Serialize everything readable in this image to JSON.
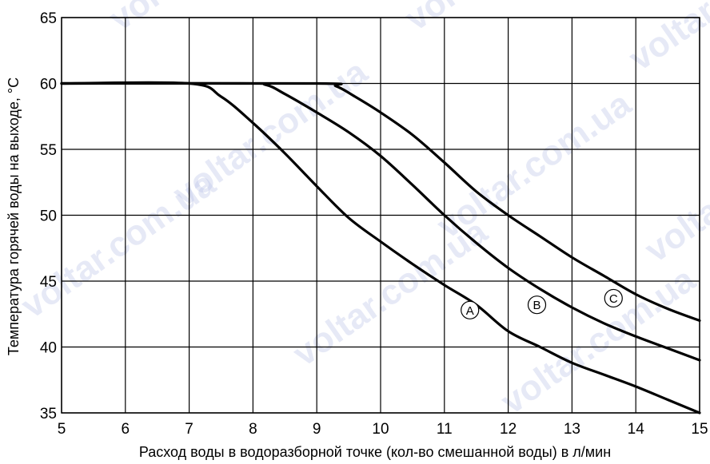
{
  "chart_data": {
    "type": "line",
    "xlabel": "Расход воды в водоразборной точке (кол-во смешанной воды) в л/мин",
    "ylabel": "Температура горячей воды на выходе, °C",
    "xlim": [
      5,
      15
    ],
    "ylim": [
      35,
      65
    ],
    "xticks": [
      5,
      6,
      7,
      8,
      9,
      10,
      11,
      12,
      13,
      14,
      15
    ],
    "yticks": [
      35,
      40,
      45,
      50,
      55,
      60,
      65
    ],
    "grid": true,
    "legend": "none",
    "series": [
      {
        "name": "A",
        "color": "#000000",
        "points": [
          [
            5,
            60
          ],
          [
            7,
            60
          ],
          [
            7.5,
            59
          ],
          [
            8,
            57
          ],
          [
            8.5,
            54.7
          ],
          [
            9,
            52.2
          ],
          [
            9.5,
            49.8
          ],
          [
            10,
            48
          ],
          [
            10.5,
            46.3
          ],
          [
            11,
            44.7
          ],
          [
            11.5,
            43.2
          ],
          [
            12,
            41.2
          ],
          [
            12.5,
            40
          ],
          [
            13,
            38.8
          ],
          [
            13.5,
            37.9
          ],
          [
            14,
            37
          ],
          [
            14.5,
            36
          ],
          [
            15,
            35
          ]
        ]
      },
      {
        "name": "B",
        "color": "#000000",
        "points": [
          [
            5,
            60
          ],
          [
            7.8,
            60
          ],
          [
            8.2,
            59.9
          ],
          [
            8.5,
            59.2
          ],
          [
            9,
            57.8
          ],
          [
            9.5,
            56.3
          ],
          [
            10,
            54.5
          ],
          [
            10.5,
            52.3
          ],
          [
            11,
            50
          ],
          [
            11.5,
            47.9
          ],
          [
            12,
            46
          ],
          [
            12.5,
            44.4
          ],
          [
            13,
            43
          ],
          [
            13.5,
            41.8
          ],
          [
            14,
            40.8
          ],
          [
            14.5,
            39.9
          ],
          [
            15,
            39
          ]
        ]
      },
      {
        "name": "C",
        "color": "#000000",
        "points": [
          [
            5,
            60
          ],
          [
            9,
            60
          ],
          [
            9.3,
            59.8
          ],
          [
            9.6,
            59
          ],
          [
            10,
            57.8
          ],
          [
            10.5,
            56.1
          ],
          [
            11,
            54
          ],
          [
            11.5,
            51.8
          ],
          [
            12,
            50
          ],
          [
            12.5,
            48.4
          ],
          [
            13,
            46.8
          ],
          [
            13.5,
            45.4
          ],
          [
            14,
            44
          ],
          [
            14.5,
            42.9
          ],
          [
            15,
            42
          ]
        ]
      }
    ],
    "annotations": [
      {
        "label": "A",
        "x": 11.4,
        "y": 42.8
      },
      {
        "label": "B",
        "x": 12.45,
        "y": 43.2
      },
      {
        "label": "C",
        "x": 13.65,
        "y": 43.7
      }
    ]
  },
  "watermark": "voltar.com.ua"
}
